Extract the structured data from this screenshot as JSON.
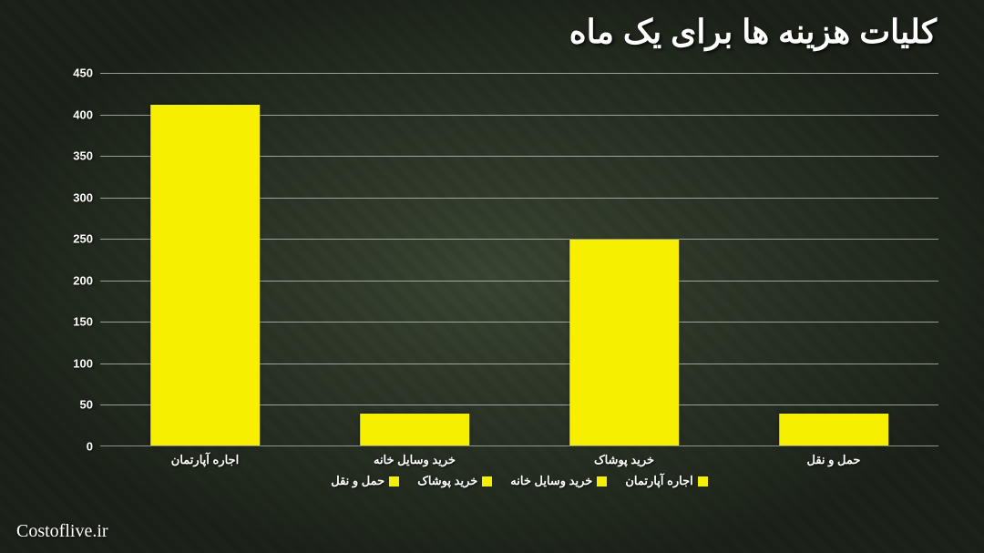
{
  "title": "کلیات هزینه ها برای یک ماه",
  "watermark": "Costoflive.ir",
  "chart": {
    "type": "bar",
    "bar_color": "#f7ef00",
    "grid_color": "rgba(255,255,255,0.55)",
    "text_color": "#ffffff",
    "ylim": [
      0,
      450
    ],
    "ytick_step": 50,
    "yticks": [
      0,
      50,
      100,
      150,
      200,
      250,
      300,
      350,
      400,
      450
    ],
    "categories": [
      "اجاره آپارتمان",
      "خرید وسایل خانه",
      "خرید پوشاک",
      "حمل و نقل"
    ],
    "values": [
      410,
      38,
      248,
      38
    ],
    "bar_width_pct": 13,
    "legend": [
      "اجاره آپارتمان",
      "خرید وسایل خانه",
      "خرید پوشاک",
      "حمل و نقل"
    ]
  }
}
